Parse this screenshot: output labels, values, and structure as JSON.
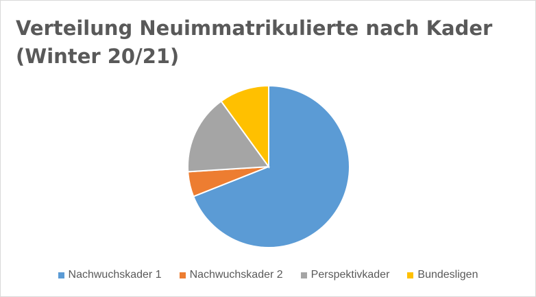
{
  "chart_data": {
    "type": "pie",
    "title": "Verteilung Neuimmatrikulierte nach Kader (Winter 20/21)",
    "categories": [
      "Nachwuchskader 1",
      "Nachwuchskader 2",
      "Perspektivkader",
      "Bundesligen"
    ],
    "values": [
      69,
      5,
      16,
      10
    ],
    "colors": [
      "#5b9bd5",
      "#ed7d31",
      "#a5a5a5",
      "#ffc000"
    ],
    "legend_position": "bottom",
    "start_angle": "12 o'clock",
    "direction": "clockwise"
  }
}
